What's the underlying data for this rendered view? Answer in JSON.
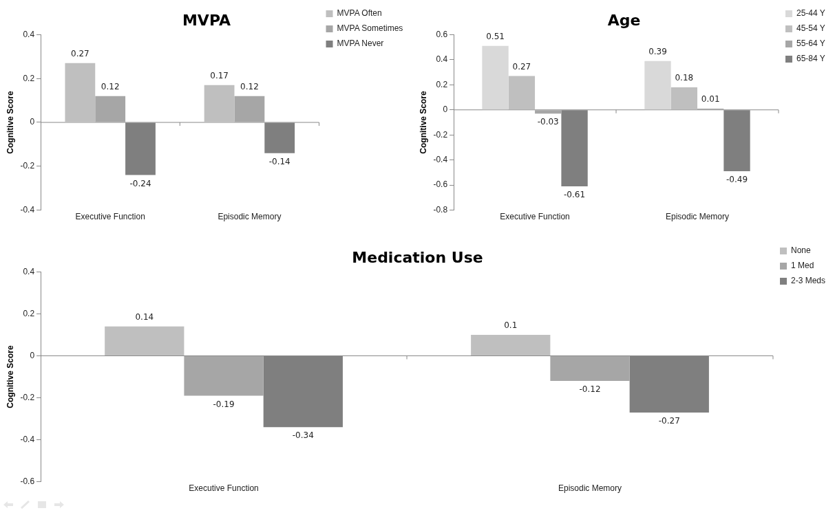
{
  "chart_data": [
    {
      "type": "bar",
      "title": "MVPA",
      "ylabel": "Cognitive Score",
      "categories": [
        "Executive Function",
        "Episodic Memory"
      ],
      "series": [
        {
          "name": "MVPA Often",
          "color": "#bfbfbf",
          "values": [
            0.27,
            0.17
          ]
        },
        {
          "name": "MVPA Sometimes",
          "color": "#a6a6a6",
          "values": [
            0.12,
            0.12
          ]
        },
        {
          "name": "MVPA Never",
          "color": "#7f7f7f",
          "values": [
            -0.24,
            -0.14
          ]
        }
      ],
      "ylim": [
        -0.4,
        0.4
      ],
      "yticks": [
        -0.4,
        -0.2,
        0,
        0.2,
        0.4
      ],
      "data_labels": true,
      "legend": "top right"
    },
    {
      "type": "bar",
      "title": "Age",
      "ylabel": "Cognitive Score",
      "categories": [
        "Executive Function",
        "Episodic Memory"
      ],
      "series": [
        {
          "name": "25-44 Y",
          "color": "#d9d9d9",
          "values": [
            0.51,
            0.39
          ]
        },
        {
          "name": "45-54 Y",
          "color": "#bfbfbf",
          "values": [
            0.27,
            0.18
          ]
        },
        {
          "name": "55-64 Y",
          "color": "#a6a6a6",
          "values": [
            -0.03,
            0.01
          ]
        },
        {
          "name": "65-84 Y",
          "color": "#7f7f7f",
          "values": [
            -0.61,
            -0.49
          ]
        }
      ],
      "ylim": [
        -0.8,
        0.6
      ],
      "yticks": [
        -0.8,
        -0.6,
        -0.4,
        -0.2,
        0,
        0.2,
        0.4,
        0.6
      ],
      "data_labels": true,
      "legend": "top right"
    },
    {
      "type": "bar",
      "title": "Medication Use",
      "ylabel": "Cognitive Score",
      "categories": [
        "Executive Function",
        "Episodic Memory"
      ],
      "series": [
        {
          "name": "None",
          "color": "#bfbfbf",
          "values": [
            0.14,
            0.1
          ]
        },
        {
          "name": "1 Med",
          "color": "#a6a6a6",
          "values": [
            -0.19,
            -0.12
          ]
        },
        {
          "name": "2-3 Meds",
          "color": "#7f7f7f",
          "values": [
            -0.34,
            -0.27
          ]
        }
      ],
      "ylim": [
        -0.6,
        0.4
      ],
      "yticks": [
        -0.6,
        -0.4,
        -0.2,
        0,
        0.2,
        0.4
      ],
      "data_labels": true,
      "legend": "top right"
    }
  ]
}
